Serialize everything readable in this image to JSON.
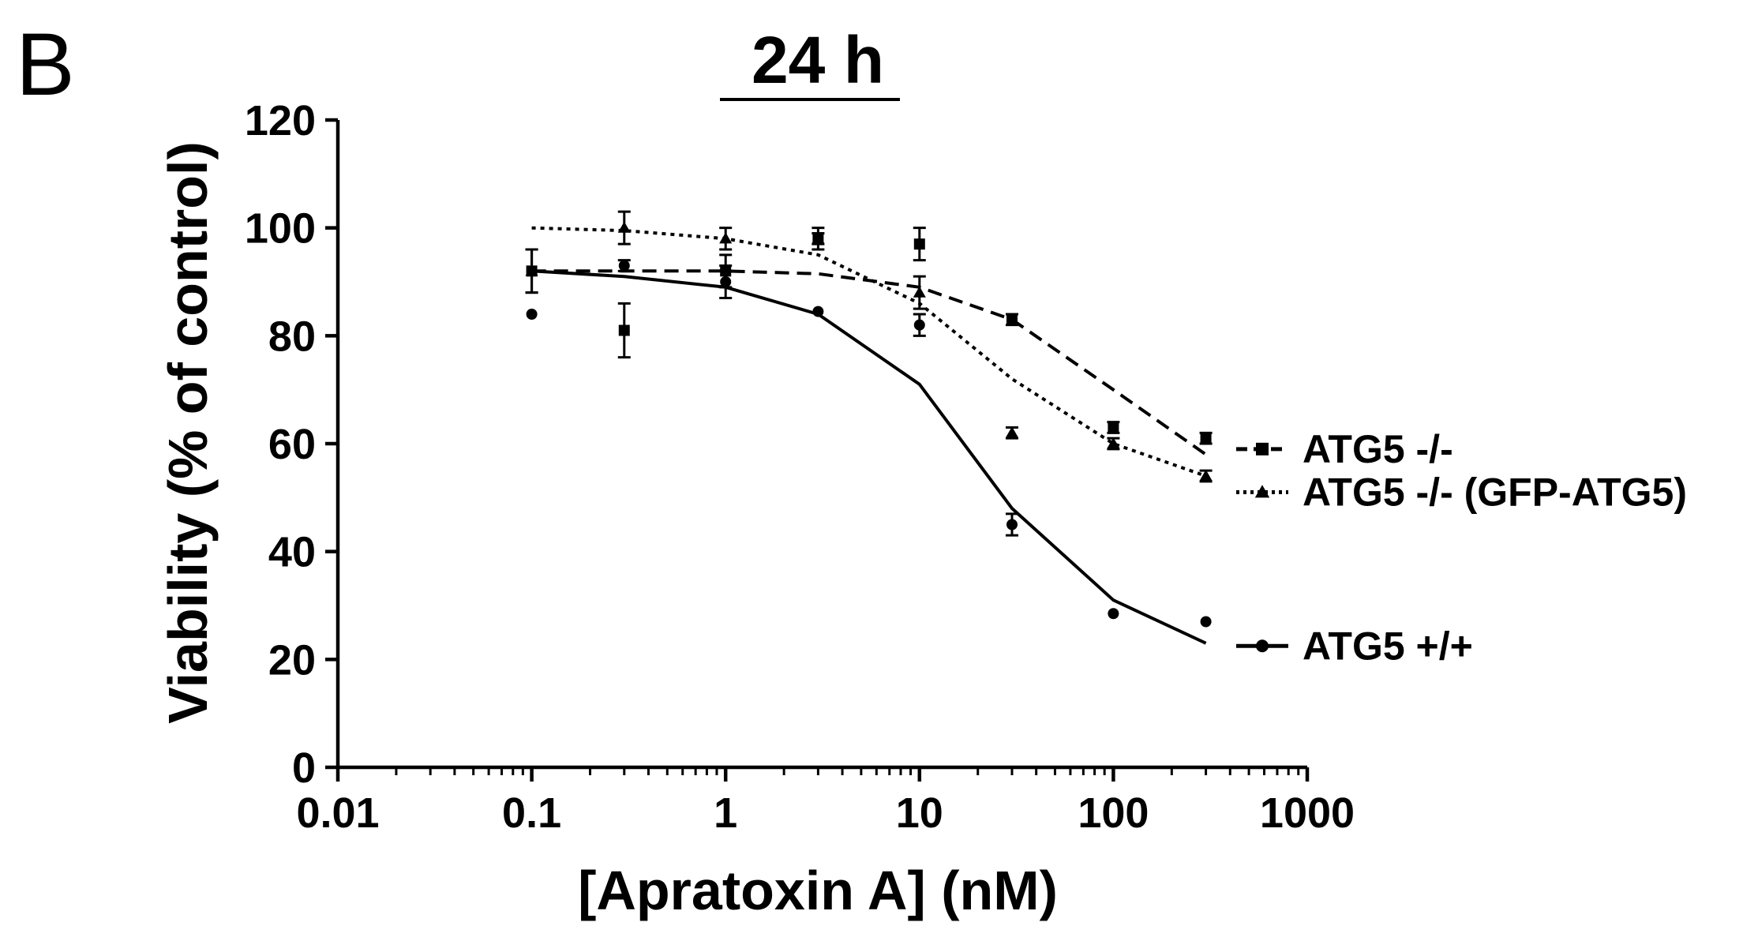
{
  "panel_label": "B",
  "chart_data": {
    "type": "scatter",
    "title": "24 h",
    "xlabel": "[Apratoxin A] (nM)",
    "ylabel": "Viability (% of control)",
    "xscale": "log",
    "xlim": [
      0.01,
      1000
    ],
    "ylim": [
      0,
      120
    ],
    "xticks": [
      0.01,
      0.1,
      1,
      10,
      100,
      1000
    ],
    "xtick_labels": [
      "0.01",
      "0.1",
      "1",
      "10",
      "100",
      "1000"
    ],
    "yticks": [
      0,
      20,
      40,
      60,
      80,
      100,
      120
    ],
    "ytick_labels": [
      "0",
      "20",
      "40",
      "60",
      "80",
      "100",
      "120"
    ],
    "grid": false,
    "legend_position": "right",
    "x": [
      0.1,
      0.3,
      1,
      3,
      10,
      30,
      100,
      300
    ],
    "series": [
      {
        "name": "ATG5 -/-",
        "marker": "square",
        "line_style": "dashed",
        "values": [
          92,
          81,
          92,
          98,
          97,
          83,
          63,
          61
        ],
        "errors": [
          4,
          5,
          3,
          2,
          3,
          1,
          1,
          1
        ],
        "fit": [
          92,
          92,
          92,
          91.5,
          89,
          83,
          70,
          58
        ]
      },
      {
        "name": "ATG5 -/- (GFP-ATG5)",
        "marker": "triangle",
        "line_style": "dotted",
        "values": [
          92,
          100,
          98,
          98,
          88,
          62,
          60,
          54
        ],
        "errors": [
          4,
          3,
          2,
          1,
          3,
          1,
          1,
          1
        ],
        "fit": [
          100,
          99.5,
          98,
          95,
          86,
          72,
          60,
          54
        ]
      },
      {
        "name": "ATG5 +/+",
        "marker": "circle",
        "line_style": "solid",
        "values": [
          84,
          93,
          90,
          84.5,
          82,
          45,
          28.5,
          27
        ],
        "errors": [
          0,
          1,
          3,
          0,
          2,
          2,
          0,
          0
        ],
        "fit": [
          92,
          91,
          89,
          84,
          71,
          48,
          31,
          23
        ]
      }
    ]
  }
}
